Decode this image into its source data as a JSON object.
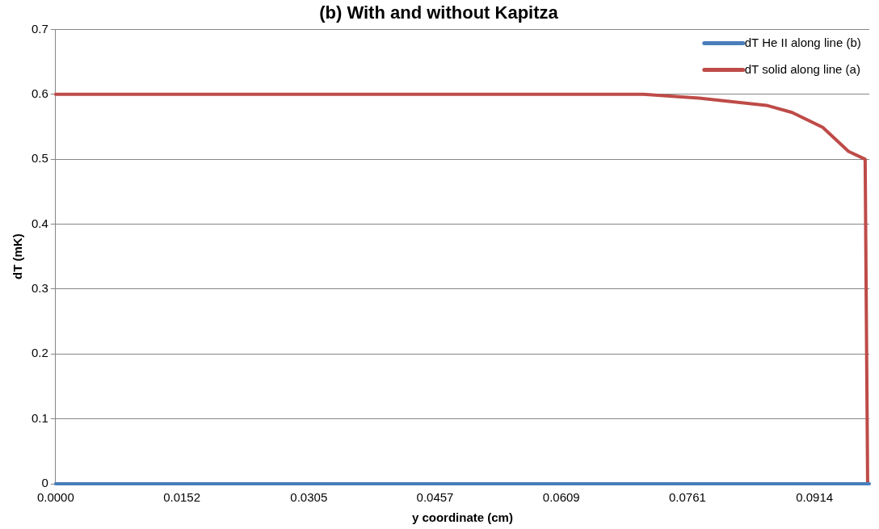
{
  "chart_data": {
    "type": "line",
    "title": "(b) With and without Kapitza",
    "xlabel": "y coordinate (cm)",
    "ylabel": "dT (mK)",
    "xlim": [
      0,
      0.098
    ],
    "xticks": [
      {
        "value": 0,
        "label": "0.0000"
      },
      {
        "value": 0.0152,
        "label": "0.0152"
      },
      {
        "value": 0.0305,
        "label": "0.0305"
      },
      {
        "value": 0.0457,
        "label": "0.0457"
      },
      {
        "value": 0.0609,
        "label": "0.0609"
      },
      {
        "value": 0.0761,
        "label": "0.0761"
      },
      {
        "value": 0.0914,
        "label": "0.0914"
      }
    ],
    "ylim": [
      0,
      0.7
    ],
    "yticks": [
      0,
      0.1,
      0.2,
      0.3,
      0.4,
      0.5,
      0.6,
      0.7
    ],
    "grid": "y",
    "legend": "top right",
    "marker": "none",
    "line_style": "solid",
    "series": [
      {
        "name": "dT He II along line (b)",
        "color": "#4a7ebb",
        "x": [
          0,
          0.098
        ],
        "values": [
          0,
          0
        ]
      },
      {
        "name": "dT solid along line (a)",
        "color": "#be4b48",
        "x": [
          0,
          0.0708,
          0.0775,
          0.0856,
          0.0887,
          0.0924,
          0.0955,
          0.0975,
          0.0978
        ],
        "values": [
          0.6,
          0.6,
          0.594,
          0.583,
          0.572,
          0.549,
          0.512,
          0.5,
          0
        ]
      }
    ]
  }
}
